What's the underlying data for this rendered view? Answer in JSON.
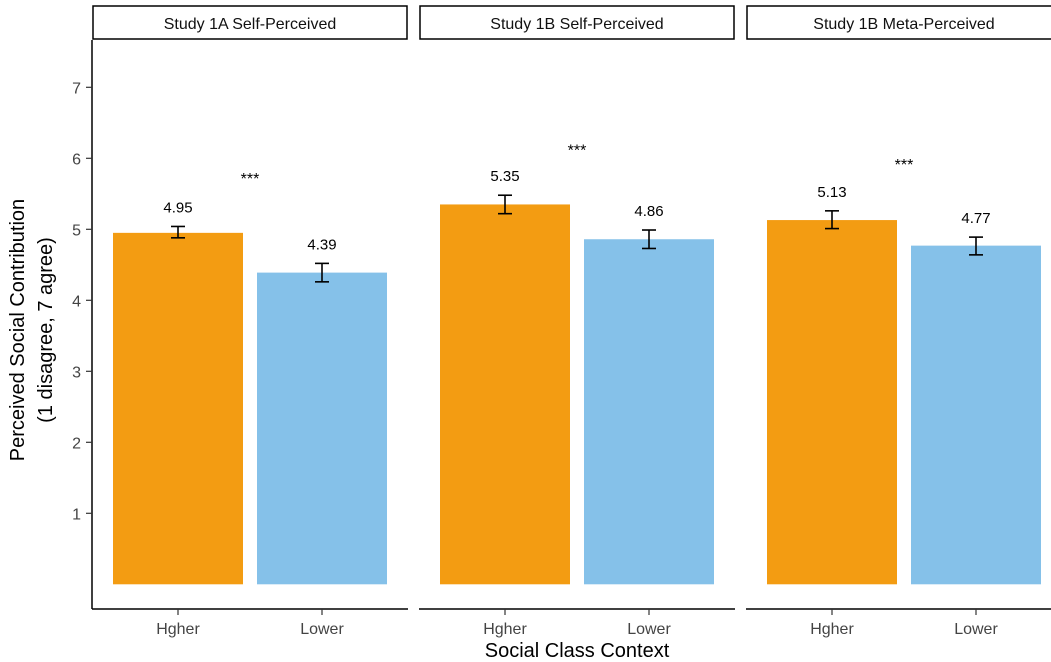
{
  "chart_data": {
    "type": "bar",
    "xlabel": "Social Class Context",
    "ylabel": [
      "Perceived Social Contribution",
      "(1 disagree, 7 agree)"
    ],
    "categories": [
      "Hgher",
      "Lower"
    ],
    "yticks": [
      1,
      2,
      3,
      4,
      5,
      6,
      7
    ],
    "ylim": [
      0,
      7.6
    ],
    "bar_baseline": 0,
    "grid": false,
    "colors": {
      "Hgher": "#F39C12",
      "Lower": "#85C1E9"
    },
    "significance": "***",
    "panels": [
      {
        "title": "Study 1A Self-Perceived",
        "values": [
          4.95,
          4.39
        ],
        "value_labels": [
          "4.95",
          "4.39"
        ],
        "error_low": [
          4.88,
          4.26
        ],
        "error_high": [
          5.04,
          4.52
        ],
        "significance_y": 5.75
      },
      {
        "title": "Study 1B Self-Perceived",
        "values": [
          5.35,
          4.86
        ],
        "value_labels": [
          "5.35",
          "4.86"
        ],
        "error_low": [
          5.22,
          4.73
        ],
        "error_high": [
          5.48,
          4.99
        ],
        "significance_y": 6.15
      },
      {
        "title": "Study 1B Meta-Perceived",
        "values": [
          5.13,
          4.77
        ],
        "value_labels": [
          "5.13",
          "4.77"
        ],
        "error_low": [
          5.01,
          4.64
        ],
        "error_high": [
          5.26,
          4.89
        ],
        "significance_y": 5.95
      }
    ]
  }
}
